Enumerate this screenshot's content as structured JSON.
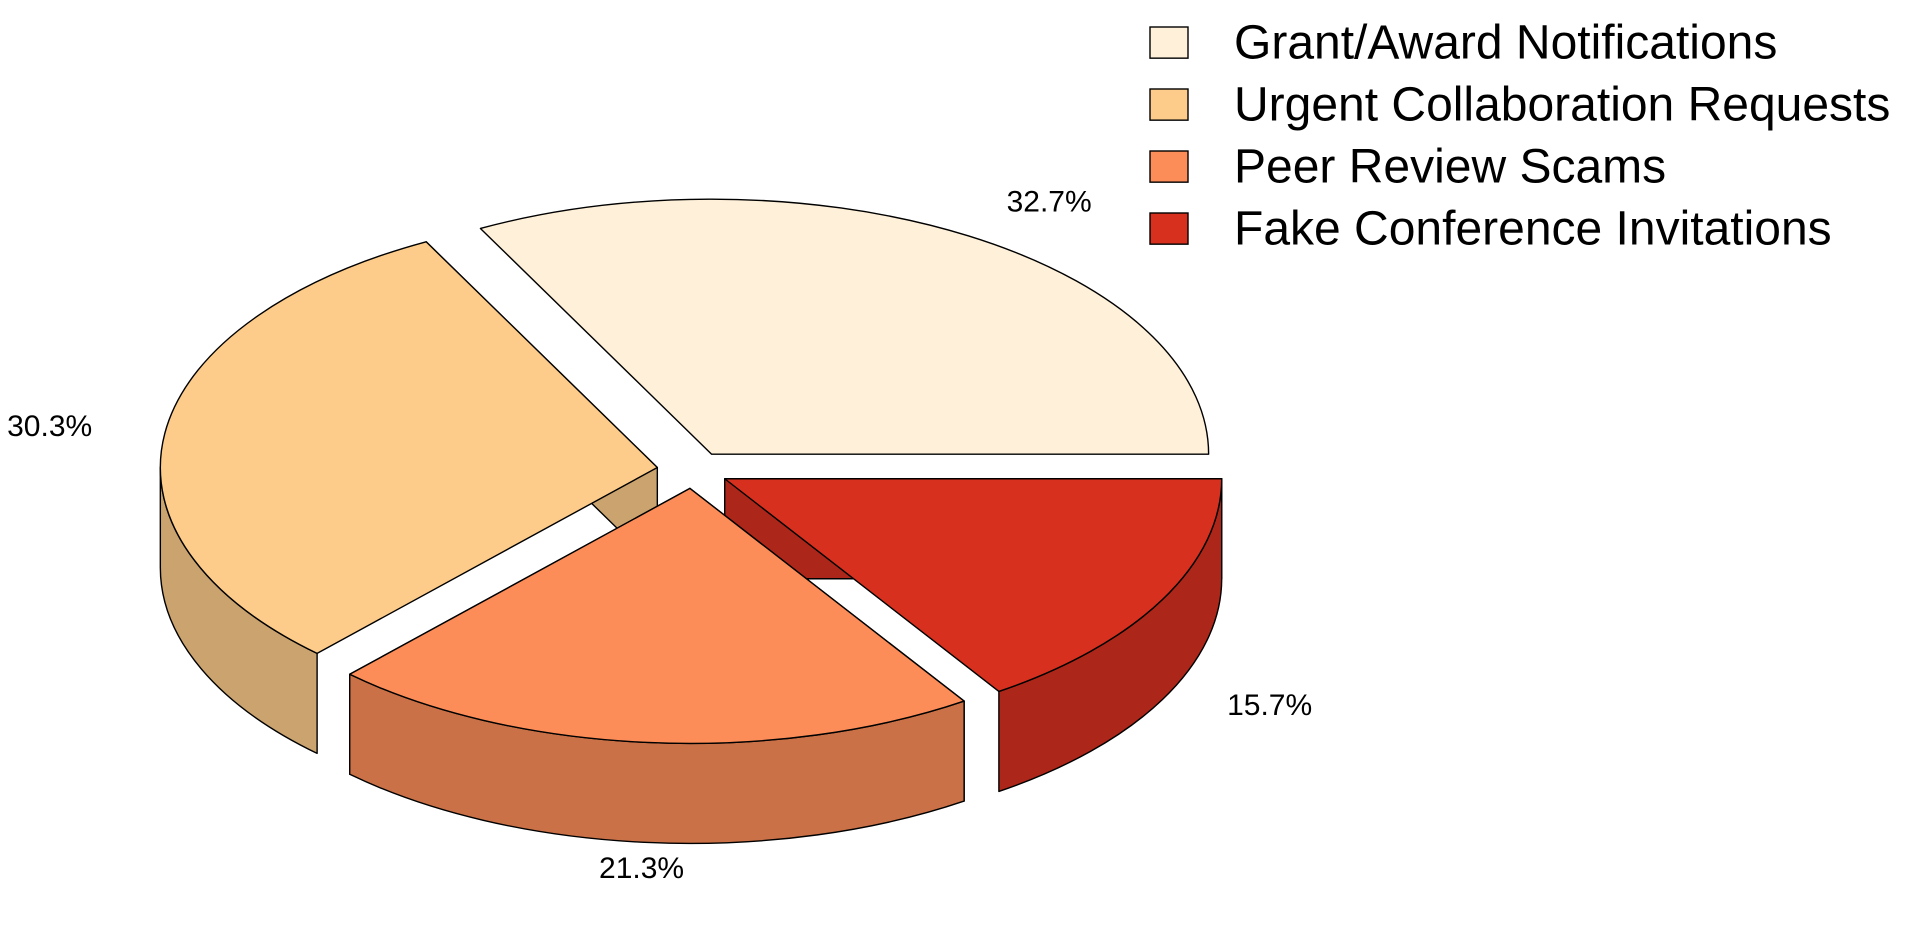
{
  "chart_data": {
    "type": "pie",
    "style": "3d-exploded",
    "categories": [
      "Grant/Award Notifications",
      "Urgent Collaboration Requests",
      "Peer Review Scams",
      "Fake Conference Invitations"
    ],
    "values": [
      32.7,
      30.3,
      21.3,
      15.7
    ],
    "labels": [
      "32.7%",
      "30.3%",
      "21.3%",
      "15.7%"
    ],
    "colors": [
      "#FEF0D9",
      "#FDCC8A",
      "#FC8D59",
      "#D7301F"
    ],
    "legend_position": "top-right",
    "start_angle_deg": 0,
    "direction": "counterclockwise"
  }
}
